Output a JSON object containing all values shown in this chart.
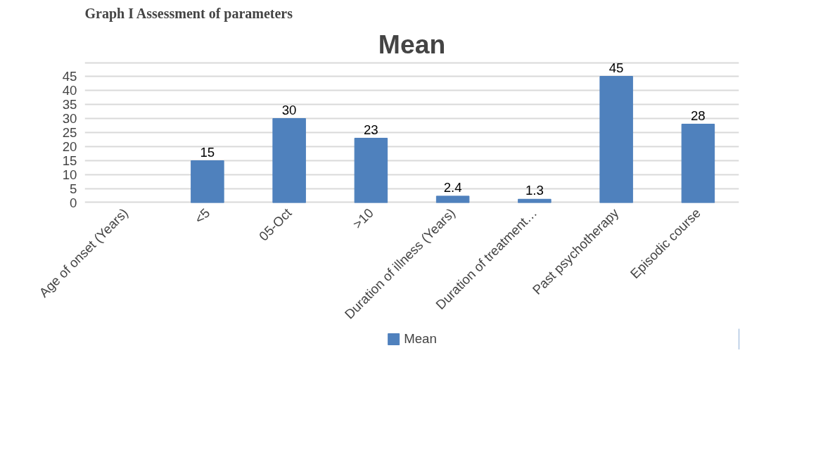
{
  "chart_data": {
    "type": "bar",
    "title": "Mean",
    "annotations": [
      "Graph I Assessment of parameters"
    ],
    "categories": [
      "Age of onset (Years)",
      "<5",
      "05-Oct",
      ">10",
      "Duration of illness (Years)",
      "Duration of treatment…",
      "Past psychotherapy",
      "Episodic course"
    ],
    "series": [
      {
        "name": "Mean",
        "color": "#4f81bd",
        "values": [
          null,
          15,
          30,
          23,
          2.4,
          1.3,
          45,
          28
        ]
      }
    ],
    "ylim": [
      0,
      50
    ],
    "yticks": [
      0,
      5,
      10,
      15,
      20,
      25,
      30,
      35,
      40,
      45,
      {
        "value": 50,
        "label": null
      }
    ],
    "grid": "y",
    "legend": "bottom",
    "data_labels": true
  }
}
